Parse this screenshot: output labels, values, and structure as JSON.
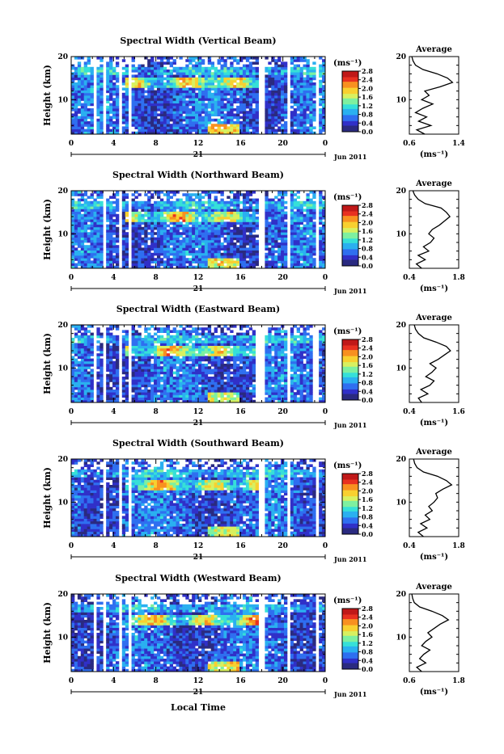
{
  "figure": {
    "xlabel": "Local Time",
    "date_label": "Jun 2011",
    "day_label": "21",
    "unit_label": "(ms⁻¹)",
    "average_title": "Average",
    "average_unit": "(ms⁻¹)",
    "ylabel": "Height (km)",
    "colorbar_ticks": [
      "2.8",
      "2.4",
      "2.0",
      "1.6",
      "1.2",
      "0.8",
      "0.4",
      "0.0"
    ],
    "colors": {
      "ramp": [
        "#2a2a80",
        "#3030c8",
        "#2f6ff0",
        "#2ab0f0",
        "#36e0d8",
        "#7ef0a0",
        "#d8f060",
        "#f8d030",
        "#f89020",
        "#e83020",
        "#c01818"
      ],
      "gap": "#ffffff"
    }
  },
  "chart_data": [
    {
      "type": "heatmap",
      "title": "Spectral Width (Vertical Beam)",
      "xlabel": "",
      "ylabel": "Height (km)",
      "x_ticks": [
        "0",
        "4",
        "8",
        "12",
        "16",
        "20",
        "0"
      ],
      "y_ticks": [
        "20",
        "10"
      ],
      "xlim": [
        0,
        24
      ],
      "ylim": [
        2,
        20
      ],
      "colorbar_range": [
        0.0,
        2.8
      ],
      "data_gaps_hours": [
        [
          2.0,
          2.3
        ],
        [
          3.0,
          3.3
        ],
        [
          4.4,
          4.8
        ],
        [
          5.4,
          5.8
        ],
        [
          17.6,
          18.3
        ],
        [
          20.3,
          20.8
        ],
        [
          23.0,
          23.4
        ]
      ],
      "average": {
        "xlim": [
          0.6,
          1.4
        ],
        "x_ticks": [
          "0.6",
          "1.4"
        ],
        "y_ticks": [
          "20",
          "10"
        ],
        "height_km": [
          2,
          3,
          4,
          5,
          6,
          7,
          8,
          9,
          10,
          11,
          12,
          13,
          14,
          15,
          16,
          17,
          18,
          19,
          20
        ],
        "value": [
          0.85,
          0.72,
          0.95,
          0.75,
          0.88,
          0.7,
          0.82,
          0.98,
          0.8,
          0.92,
          0.85,
          1.1,
          1.3,
          1.22,
          1.05,
          0.82,
          0.7,
          0.66,
          0.64
        ]
      }
    },
    {
      "type": "heatmap",
      "title": "Spectral Width (Northward Beam)",
      "xlabel": "",
      "ylabel": "Height (km)",
      "x_ticks": [
        "0",
        "4",
        "8",
        "12",
        "16",
        "20",
        "0"
      ],
      "y_ticks": [
        "20",
        "10"
      ],
      "xlim": [
        0,
        24
      ],
      "ylim": [
        2,
        20
      ],
      "colorbar_range": [
        0.0,
        2.8
      ],
      "data_gaps_hours": [
        [
          2.0,
          2.2
        ],
        [
          3.0,
          3.3
        ],
        [
          4.4,
          4.8
        ],
        [
          5.4,
          5.7
        ],
        [
          17.6,
          18.2
        ],
        [
          20.3,
          20.7
        ],
        [
          23.0,
          23.3
        ]
      ],
      "average": {
        "xlim": [
          0.4,
          1.8
        ],
        "x_ticks": [
          "0.4",
          "1.8"
        ],
        "y_ticks": [
          "20",
          "10"
        ],
        "height_km": [
          2,
          3,
          4,
          5,
          6,
          7,
          8,
          9,
          10,
          11,
          12,
          13,
          14,
          15,
          16,
          17,
          18,
          19,
          20
        ],
        "value": [
          0.75,
          0.6,
          0.85,
          0.65,
          0.95,
          0.8,
          1.0,
          1.1,
          0.95,
          1.05,
          1.25,
          1.4,
          1.55,
          1.45,
          1.3,
          0.85,
          0.65,
          0.55,
          0.5
        ]
      }
    },
    {
      "type": "heatmap",
      "title": "Spectral Width (Eastward Beam)",
      "xlabel": "",
      "ylabel": "Height (km)",
      "x_ticks": [
        "0",
        "4",
        "8",
        "12",
        "16",
        "20",
        "0"
      ],
      "y_ticks": [
        "20",
        "10"
      ],
      "xlim": [
        0,
        24
      ],
      "ylim": [
        2,
        20
      ],
      "colorbar_range": [
        0.0,
        2.8
      ],
      "data_gaps_hours": [
        [
          2.0,
          2.3
        ],
        [
          3.0,
          3.3
        ],
        [
          4.5,
          4.8
        ],
        [
          5.4,
          5.7
        ],
        [
          17.5,
          18.2
        ],
        [
          20.4,
          20.7
        ],
        [
          22.9,
          23.3
        ]
      ],
      "average": {
        "xlim": [
          0.4,
          1.6
        ],
        "x_ticks": [
          "0.4",
          "1.6"
        ],
        "y_ticks": [
          "20",
          "10"
        ],
        "height_km": [
          2,
          3,
          4,
          5,
          6,
          7,
          8,
          9,
          10,
          11,
          12,
          13,
          14,
          15,
          16,
          17,
          18,
          19,
          20
        ],
        "value": [
          0.7,
          0.62,
          0.85,
          0.68,
          0.9,
          1.0,
          0.8,
          0.95,
          1.05,
          0.9,
          1.1,
          1.25,
          1.4,
          1.3,
          1.05,
          0.75,
          0.62,
          0.55,
          0.52
        ]
      }
    },
    {
      "type": "heatmap",
      "title": "Spectral Width (Southward Beam)",
      "xlabel": "",
      "ylabel": "Height (km)",
      "x_ticks": [
        "0",
        "4",
        "8",
        "12",
        "16",
        "20",
        "0"
      ],
      "y_ticks": [
        "20",
        "10"
      ],
      "xlim": [
        0,
        24
      ],
      "ylim": [
        2,
        20
      ],
      "colorbar_range": [
        0.0,
        2.8
      ],
      "data_gaps_hours": [
        [
          2.0,
          2.2
        ],
        [
          3.0,
          3.3
        ],
        [
          4.4,
          4.7
        ],
        [
          5.4,
          5.7
        ],
        [
          17.6,
          18.2
        ],
        [
          20.3,
          20.7
        ],
        [
          23.0,
          23.3
        ]
      ],
      "average": {
        "xlim": [
          0.4,
          1.8
        ],
        "x_ticks": [
          "0.4",
          "1.8"
        ],
        "y_ticks": [
          "20",
          "10"
        ],
        "height_km": [
          2,
          3,
          4,
          5,
          6,
          7,
          8,
          9,
          10,
          11,
          12,
          13,
          14,
          15,
          16,
          17,
          18,
          19,
          20
        ],
        "value": [
          0.8,
          0.65,
          0.9,
          0.72,
          0.98,
          0.85,
          1.05,
          0.95,
          1.1,
          1.2,
          1.15,
          1.35,
          1.6,
          1.45,
          1.2,
          0.8,
          0.62,
          0.55,
          0.52
        ]
      }
    },
    {
      "type": "heatmap",
      "title": "Spectral Width (Westward Beam)",
      "xlabel": "Local Time",
      "ylabel": "Height (km)",
      "x_ticks": [
        "0",
        "4",
        "8",
        "12",
        "16",
        "20",
        "0"
      ],
      "y_ticks": [
        "20",
        "10"
      ],
      "xlim": [
        0,
        24
      ],
      "ylim": [
        2,
        20
      ],
      "colorbar_range": [
        0.0,
        2.8
      ],
      "data_gaps_hours": [
        [
          2.0,
          2.3
        ],
        [
          3.0,
          3.3
        ],
        [
          4.4,
          4.8
        ],
        [
          5.4,
          5.7
        ],
        [
          17.6,
          18.2
        ],
        [
          20.3,
          20.7
        ],
        [
          23.0,
          23.3
        ]
      ],
      "average": {
        "xlim": [
          0.6,
          1.8
        ],
        "x_ticks": [
          "0.6",
          "1.8"
        ],
        "y_ticks": [
          "20",
          "10"
        ],
        "height_km": [
          2,
          3,
          4,
          5,
          6,
          7,
          8,
          9,
          10,
          11,
          12,
          13,
          14,
          15,
          16,
          17,
          18,
          19,
          20
        ],
        "value": [
          0.9,
          0.78,
          1.0,
          0.85,
          0.95,
          1.1,
          0.9,
          1.0,
          1.15,
          1.05,
          1.2,
          1.35,
          1.55,
          1.4,
          1.15,
          0.85,
          0.72,
          0.68,
          0.66
        ]
      }
    }
  ]
}
